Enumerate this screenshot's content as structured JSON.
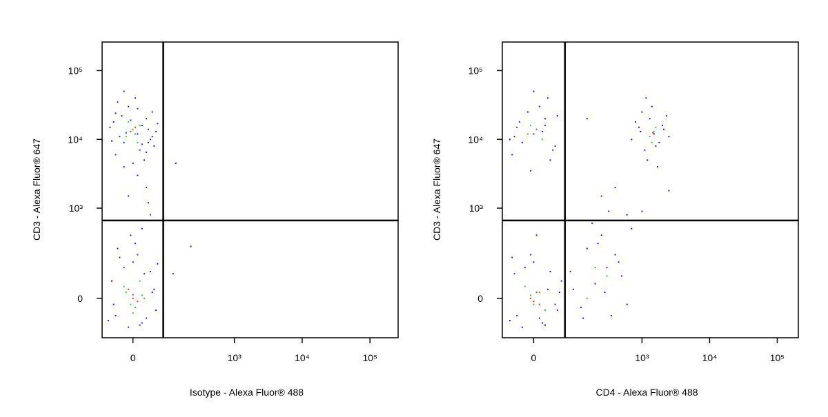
{
  "chart_data": [
    {
      "type": "scatter",
      "xlabel": "Isotype - Alexa Fluor® 488",
      "ylabel": "CD3 - Alexa Fluor® 647",
      "xscale": "biexponential",
      "yscale": "biexponential",
      "xlim": [
        -80,
        260000
      ],
      "ylim": [
        -170,
        260000
      ],
      "xticks": [
        0,
        {
          "value": 1000,
          "label": "10³"
        },
        {
          "value": 10000,
          "label": "10⁴"
        },
        {
          "value": 100000,
          "label": "10⁵"
        }
      ],
      "yticks": [
        0,
        {
          "value": 1000,
          "label": "10³"
        },
        {
          "value": 10000,
          "label": "10⁴"
        },
        {
          "value": 100000,
          "label": "10⁵"
        }
      ],
      "gates": {
        "x": 78,
        "y": 660
      },
      "series": [
        {
          "color": "#1a1aff",
          "x": [
            -40,
            -20,
            10,
            30,
            50,
            -55,
            -10,
            25,
            45,
            -30,
            5,
            35,
            -45,
            15,
            55,
            -25,
            0,
            40,
            -35,
            20,
            -50,
            10,
            -15,
            30,
            60,
            -5,
            45,
            -40,
            20,
            -20,
            10,
            30,
            -10,
            40,
            20,
            5,
            -20,
            35,
            -60,
            -40,
            -20,
            0,
            20,
            40,
            55,
            -50,
            -30,
            -10,
            10,
            30,
            50,
            -45,
            25,
            60,
            -35,
            15,
            -5,
            45,
            130,
            224,
            117,
            35
          ],
          "values": [
            6000,
            9000,
            12000,
            20000,
            8000,
            15000,
            30000,
            5000,
            25000,
            11000,
            40000,
            14000,
            18000,
            7000,
            13000,
            22000,
            4500,
            10000,
            35000,
            16000,
            9500,
            28000,
            12500,
            6500,
            17000,
            19000,
            11000,
            24000,
            8500,
            50000,
            3000,
            2000,
            1500,
            800,
            500,
            300,
            4000,
            1200,
            -80,
            -60,
            120,
            150,
            -90,
            100,
            -40,
            60,
            180,
            -110,
            200,
            -70,
            30,
            -20,
            90,
            140,
            250,
            -100,
            400,
            20,
            4500,
            270,
            90,
            9000
          ]
        },
        {
          "color": "#22cc22",
          "x": [
            -15,
            0,
            15,
            -10,
            10,
            5,
            -5,
            20,
            -20,
            0,
            15,
            -10,
            5,
            25,
            -15
          ],
          "values": [
            11000,
            14000,
            16000,
            18000,
            9000,
            12000,
            -20,
            10,
            40,
            -50,
            60,
            30,
            -30,
            0,
            20
          ]
        },
        {
          "color": "#ff2200",
          "x": [
            -5,
            5,
            0,
            10,
            -10,
            0
          ],
          "values": [
            13000,
            15000,
            12,
            -10,
            30,
            0
          ]
        }
      ]
    },
    {
      "type": "scatter",
      "xlabel": "CD4 - Alexa Fluor® 488",
      "ylabel": "CD3 - Alexa Fluor® 647",
      "xscale": "biexponential",
      "yscale": "biexponential",
      "xlim": [
        -64,
        205000
      ],
      "ylim": [
        -170,
        260000
      ],
      "xticks": [
        0,
        {
          "value": 1000,
          "label": "10³"
        },
        {
          "value": 10000,
          "label": "10⁴"
        },
        {
          "value": 100000,
          "label": "10⁵"
        }
      ],
      "yticks": [
        0,
        {
          "value": 1000,
          "label": "10³"
        },
        {
          "value": 10000,
          "label": "10⁴"
        },
        {
          "value": 100000,
          "label": "10⁵"
        }
      ],
      "gates": {
        "x": 64,
        "y": 660
      },
      "series": [
        {
          "color": "#1a1aff",
          "x": [
            -40,
            -20,
            0,
            20,
            40,
            -30,
            10,
            30,
            -10,
            -35,
            25,
            5,
            -25,
            35,
            15,
            -5,
            45,
            -45,
            0,
            20,
            700,
            900,
            1100,
            1300,
            1500,
            1800,
            2100,
            2500,
            800,
            1000,
            1200,
            1400,
            1600,
            2000,
            2300,
            1150,
            1700,
            950,
            -45,
            -30,
            -15,
            0,
            15,
            30,
            45,
            55,
            -40,
            -20,
            -5,
            10,
            25,
            40,
            -35,
            5,
            20,
            50,
            80,
            120,
            150,
            200,
            250,
            300,
            350,
            400,
            500,
            600,
            180,
            220,
            280,
            450,
            130,
            320,
            700,
            90,
            150,
            400,
            600,
            250,
            1000,
            2500
          ],
          "values": [
            6000,
            9000,
            12000,
            20000,
            8000,
            15000,
            30000,
            5000,
            25000,
            11000,
            40000,
            14000,
            18000,
            7000,
            13000,
            3500,
            22000,
            10000,
            50000,
            16000,
            10000,
            15000,
            7000,
            20000,
            12000,
            9000,
            14000,
            11000,
            18000,
            25000,
            5000,
            30000,
            8000,
            16000,
            22000,
            40000,
            4000,
            13000,
            -80,
            -60,
            120,
            150,
            -90,
            100,
            -40,
            60,
            180,
            -110,
            200,
            -70,
            30,
            -20,
            90,
            400,
            -100,
            20,
            100,
            -30,
            250,
            50,
            400,
            120,
            -60,
            200,
            80,
            -20,
            600,
            300,
            20,
            150,
            -70,
            900,
            500,
            30,
            20000,
            2000,
            800,
            1500,
            900,
            1800
          ]
        },
        {
          "color": "#22cc22",
          "x": [
            -10,
            5,
            15,
            -5,
            1300,
            1500,
            1600,
            1400,
            0,
            10,
            -15,
            20,
            -5,
            200,
            150,
            300
          ],
          "values": [
            12000,
            14000,
            10000,
            16000,
            11000,
            13000,
            15000,
            9000,
            -20,
            20,
            40,
            -40,
            10,
            120,
            0,
            80
          ]
        },
        {
          "color": "#ff2200",
          "x": [
            0,
            -5,
            5,
            10,
            1450,
            0
          ],
          "values": [
            12000,
            0,
            20,
            -20,
            12500,
            -10
          ]
        }
      ]
    }
  ]
}
